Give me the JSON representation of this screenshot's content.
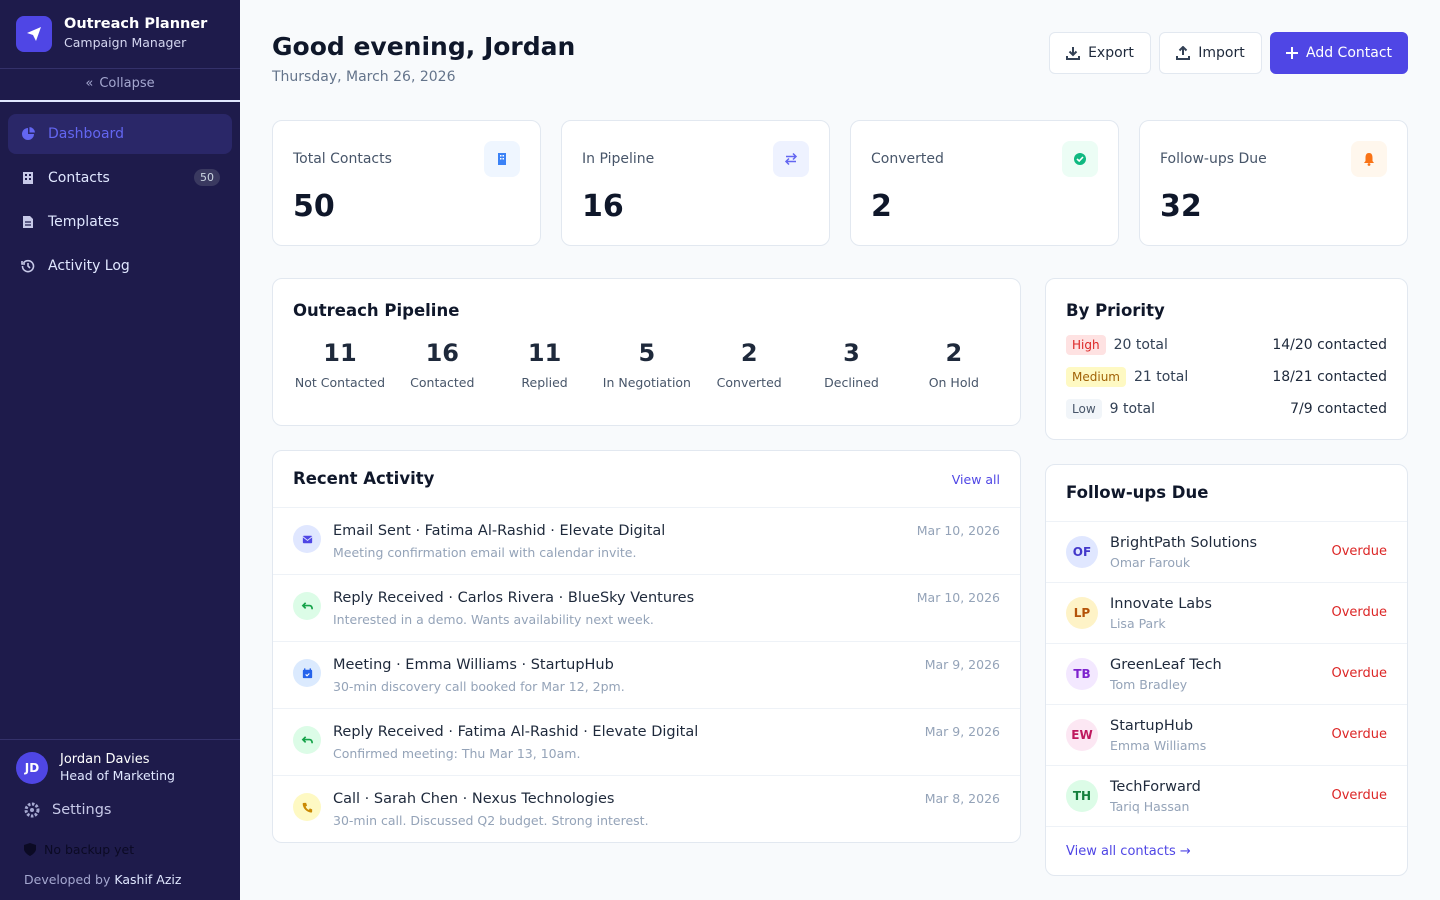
{
  "sidebar": {
    "app_name": "Outreach Planner",
    "app_subtitle": "Campaign Manager",
    "collapse": "Collapse",
    "nav": [
      {
        "label": "Dashboard",
        "active": true
      },
      {
        "label": "Contacts",
        "badge": 50
      },
      {
        "label": "Templates"
      },
      {
        "label": "Activity Log"
      }
    ],
    "user": {
      "initials": "JD",
      "name": "Jordan Davies",
      "role": "Head of Marketing"
    },
    "settings": "Settings",
    "backup": "No backup yet",
    "credit_prefix": "Developed by",
    "credit_name": "Kashif Aziz"
  },
  "header": {
    "greeting": "Good evening, Jordan",
    "date": "Thursday, March 26, 2026",
    "buttons": [
      "Export",
      "Import",
      "Add Contact"
    ]
  },
  "stats": [
    {
      "label": "Total Contacts",
      "value": 50
    },
    {
      "label": "In Pipeline",
      "value": 16
    },
    {
      "label": "Converted",
      "value": 2
    },
    {
      "label": "Follow-ups Due",
      "value": 32
    }
  ],
  "pipeline": {
    "title": "Outreach Pipeline",
    "stages": [
      {
        "label": "Not Contacted",
        "count": 11
      },
      {
        "label": "Contacted",
        "count": 16
      },
      {
        "label": "Replied",
        "count": 11
      },
      {
        "label": "In Negotiation",
        "count": 5
      },
      {
        "label": "Converted",
        "count": 2
      },
      {
        "label": "Declined",
        "count": 3
      },
      {
        "label": "On Hold",
        "count": 2
      }
    ]
  },
  "priority": {
    "title": "By Priority",
    "rows": [
      {
        "level": "High",
        "total": "20 total",
        "contacted": "14/20 contacted"
      },
      {
        "level": "Medium",
        "total": "21 total",
        "contacted": "18/21 contacted"
      },
      {
        "level": "Low",
        "total": "9 total",
        "contacted": "7/9 contacted"
      }
    ]
  },
  "activity": {
    "title": "Recent Activity",
    "view_all": "View all",
    "items": [
      {
        "title": "Email Sent · Fatima Al-Rashid · Elevate Digital",
        "note": "Meeting confirmation email with calendar invite.",
        "date": "Mar 10, 2026"
      },
      {
        "title": "Reply Received · Carlos Rivera · BlueSky Ventures",
        "note": "Interested in a demo. Wants availability next week.",
        "date": "Mar 10, 2026"
      },
      {
        "title": "Meeting · Emma Williams · StartupHub",
        "note": "30-min discovery call booked for Mar 12, 2pm.",
        "date": "Mar 9, 2026"
      },
      {
        "title": "Reply Received · Fatima Al-Rashid · Elevate Digital",
        "note": "Confirmed meeting: Thu Mar 13, 10am.",
        "date": "Mar 9, 2026"
      },
      {
        "title": "Call · Sarah Chen · Nexus Technologies",
        "note": "30-min call. Discussed Q2 budget. Strong interest.",
        "date": "Mar 8, 2026"
      }
    ]
  },
  "followups": {
    "title": "Follow-ups Due",
    "items": [
      {
        "initials": "OF",
        "company": "BrightPath Solutions",
        "person": "Omar Farouk",
        "status": "Overdue"
      },
      {
        "initials": "LP",
        "company": "Innovate Labs",
        "person": "Lisa Park",
        "status": "Overdue"
      },
      {
        "initials": "TB",
        "company": "GreenLeaf Tech",
        "person": "Tom Bradley",
        "status": "Overdue"
      },
      {
        "initials": "EW",
        "company": "StartupHub",
        "person": "Emma Williams",
        "status": "Overdue"
      },
      {
        "initials": "TH",
        "company": "TechForward",
        "person": "Tariq Hassan",
        "status": "Overdue"
      }
    ],
    "view_all": "View all contacts →"
  }
}
